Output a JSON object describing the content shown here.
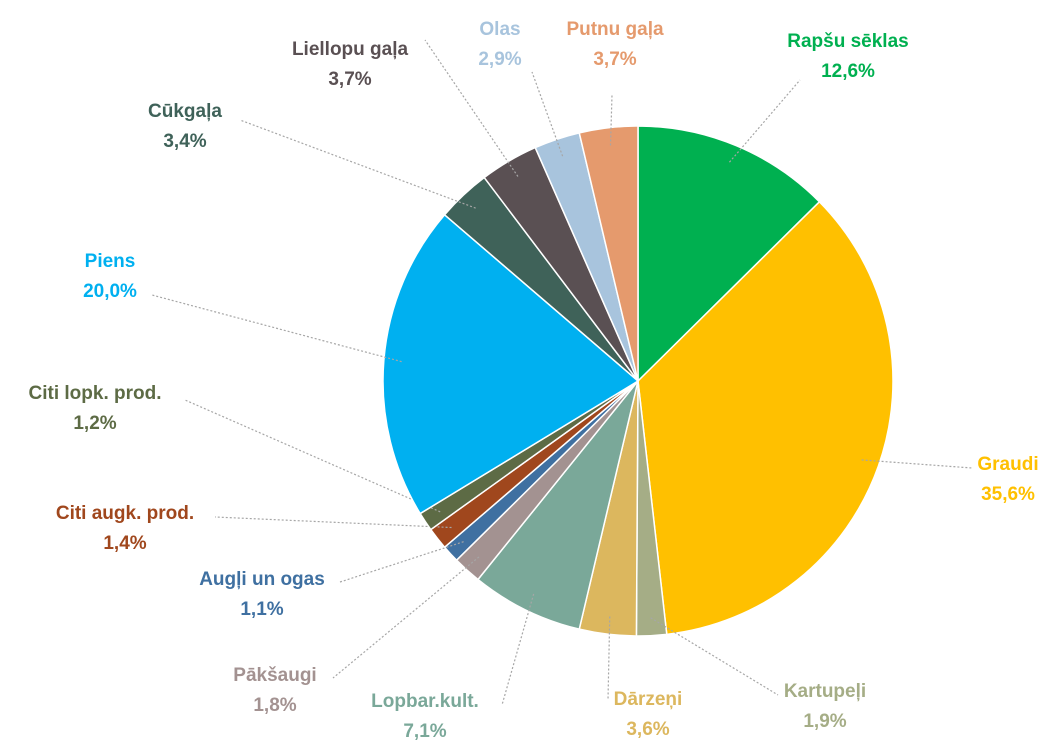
{
  "chart_data": {
    "type": "pie",
    "categories": [
      "Rapšu sēklas",
      "Graudi",
      "Kartupeļi",
      "Dārzeņi",
      "Lopbar.kult.",
      "Pākšaugi",
      "Augļi un ogas",
      "Citi augk. prod.",
      "Citi lopk. prod.",
      "Piens",
      "Cūkgaļa",
      "Liellopu gaļa",
      "Olas",
      "Putnu gaļa"
    ],
    "values": [
      12.6,
      35.6,
      1.9,
      3.6,
      7.1,
      1.8,
      1.1,
      1.4,
      1.2,
      20.0,
      3.4,
      3.7,
      2.9,
      3.7
    ],
    "value_labels": [
      "12,6%",
      "35,6%",
      "1,9%",
      "3,6%",
      "7,1%",
      "1,8%",
      "1,1%",
      "1,4%",
      "1,2%",
      "20,0%",
      "3,4%",
      "3,7%",
      "2,9%",
      "3,7%"
    ],
    "colors": [
      "#00b050",
      "#ffc000",
      "#a5ad86",
      "#dcb75e",
      "#7aa899",
      "#a39291",
      "#3f70a1",
      "#a0471d",
      "#5d6b45",
      "#00b0f0",
      "#3f6259",
      "#5a5053",
      "#a8c4dd",
      "#e59a6d"
    ]
  }
}
